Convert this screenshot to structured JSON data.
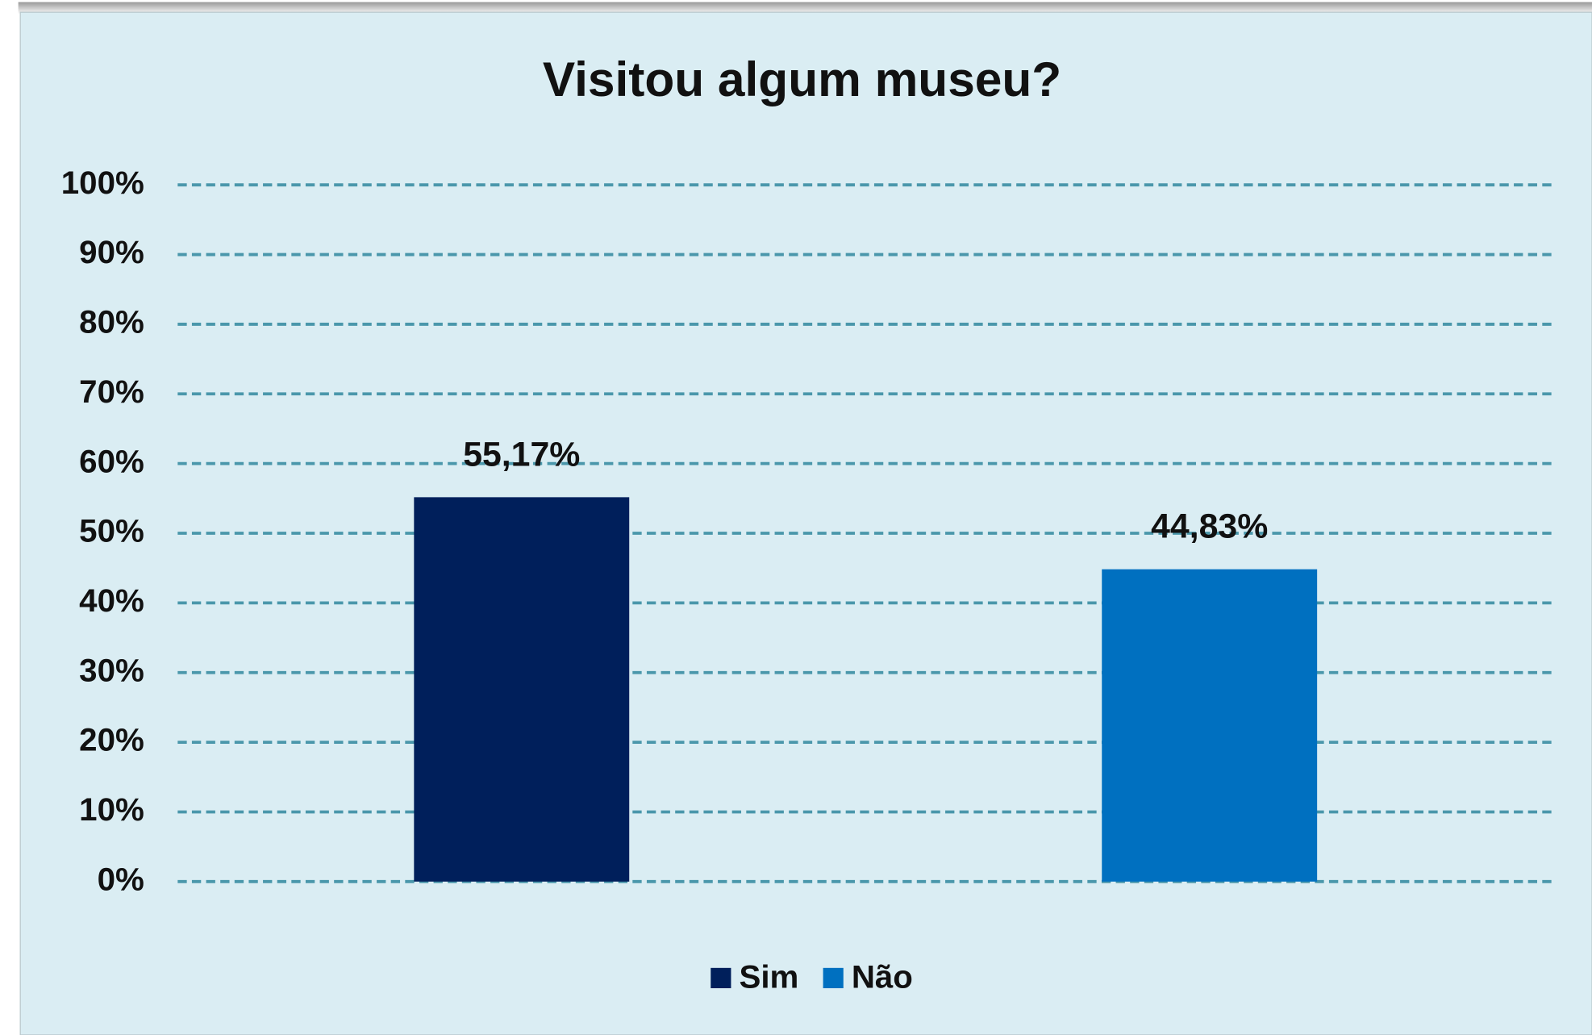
{
  "chart_data": {
    "type": "bar",
    "title": "Visitou algum museu?",
    "categories": [
      null
    ],
    "series": [
      {
        "name": "Sim",
        "color": "#001f5b",
        "values": [
          55.17
        ],
        "value_labels": [
          "55,17%"
        ]
      },
      {
        "name": "Não",
        "color": "#0070c0",
        "values": [
          44.83
        ],
        "value_labels": [
          "44,83%"
        ]
      }
    ],
    "ylim": [
      0,
      100
    ],
    "yticks": [
      {
        "value": 0,
        "label": "0%"
      },
      {
        "value": 10,
        "label": "10%"
      },
      {
        "value": 20,
        "label": "20%"
      },
      {
        "value": 30,
        "label": "30%"
      },
      {
        "value": 40,
        "label": "40%"
      },
      {
        "value": 50,
        "label": "50%"
      },
      {
        "value": 60,
        "label": "60%"
      },
      {
        "value": 70,
        "label": "70%"
      },
      {
        "value": 80,
        "label": "80%"
      },
      {
        "value": 90,
        "label": "90%"
      },
      {
        "value": 100,
        "label": "100%"
      }
    ],
    "grid": true,
    "legend": "bottom"
  }
}
